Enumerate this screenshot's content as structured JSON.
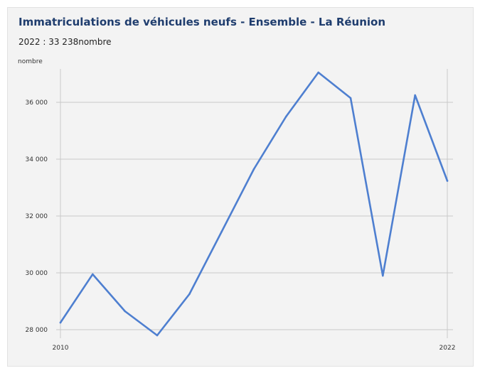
{
  "title": "Immatriculations de véhicules neufs - Ensemble - La Réunion",
  "subtitle": {
    "period": "2022",
    "separator": " : ",
    "value": "33 238",
    "unit": "nombre"
  },
  "colors": {
    "line": "#4e7fd0",
    "grid": "#c8c8c8",
    "title": "#1f3d6e",
    "background": "#f3f3f3"
  },
  "chart_data": {
    "type": "line",
    "title": "Immatriculations de véhicules neufs - Ensemble - La Réunion",
    "ylabel": "nombre",
    "xlabel": "",
    "x": [
      2010,
      2011,
      2012,
      2013,
      2014,
      2015,
      2016,
      2017,
      2018,
      2019,
      2020,
      2021,
      2022
    ],
    "series": [
      {
        "values": [
          28250,
          29950,
          28650,
          27800,
          29250,
          31450,
          33650,
          35500,
          37050,
          36150,
          29900,
          36250,
          33238
        ]
      }
    ],
    "ylim": [
      28000,
      37000
    ],
    "yticks": [
      28000,
      30000,
      32000,
      34000,
      36000
    ],
    "ytick_labels": [
      "28 000",
      "30 000",
      "32 000",
      "34 000",
      "36 000"
    ],
    "xtick_labels": [
      "2010",
      "2022"
    ],
    "grid": true,
    "legend": "none"
  }
}
